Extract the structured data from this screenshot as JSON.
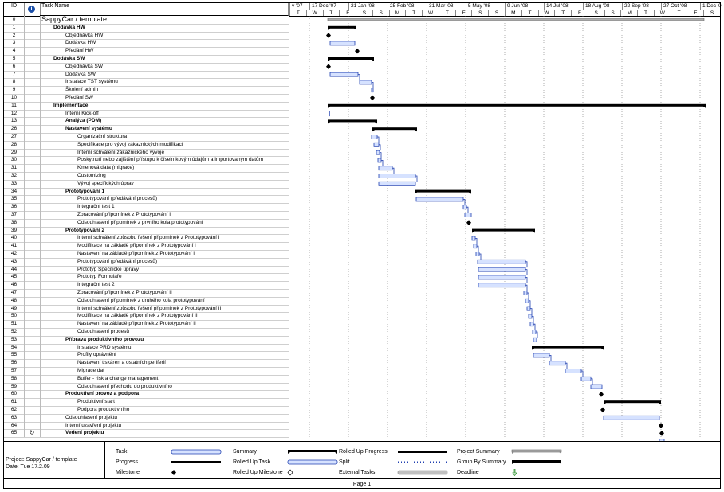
{
  "header": {
    "id_label": "ID",
    "info_glyph": "i",
    "name_label": "Task Name"
  },
  "timescale": {
    "major": [
      "v '07",
      "17 Dec '07",
      "21 Jan '08",
      "25 Feb '08",
      "31 Mar '08",
      "5 May '08",
      "9 Jun '08",
      "14 Jul '08",
      "18 Aug '08",
      "22 Sep '08",
      "27 Oct '08",
      "1 Dec '0"
    ],
    "minor": [
      "T",
      "W",
      "T",
      "F",
      "S",
      "S",
      "M",
      "T",
      "W",
      "T",
      "F",
      "S",
      "S",
      "M",
      "T",
      "W",
      "T",
      "F",
      "S",
      "S",
      "M",
      "T",
      "W",
      "T",
      "F",
      "S"
    ]
  },
  "tasks": [
    {
      "id": "0",
      "name": "SappyCar / template",
      "level": 0,
      "type": "title"
    },
    {
      "id": "1",
      "name": "Dodávka HW",
      "level": 1,
      "type": "summary"
    },
    {
      "id": "2",
      "name": "Objednávka HW",
      "level": 2
    },
    {
      "id": "3",
      "name": "Dodávka HW",
      "level": 2
    },
    {
      "id": "4",
      "name": "Předání HW",
      "level": 2
    },
    {
      "id": "5",
      "name": "Dodávka SW",
      "level": 1,
      "type": "summary"
    },
    {
      "id": "6",
      "name": "Objednávka SW",
      "level": 2
    },
    {
      "id": "7",
      "name": "Dodávka SW",
      "level": 2
    },
    {
      "id": "8",
      "name": "Instalace TST systému",
      "level": 2
    },
    {
      "id": "9",
      "name": "Školení admin",
      "level": 2
    },
    {
      "id": "10",
      "name": "Předání SW",
      "level": 2
    },
    {
      "id": "11",
      "name": "Implementace",
      "level": 1,
      "type": "summary"
    },
    {
      "id": "12",
      "name": "Interní Kick-off",
      "level": 2
    },
    {
      "id": "13",
      "name": "Analýza (PDM)",
      "level": 2,
      "type": "summary"
    },
    {
      "id": "26",
      "name": "Nastavení systému",
      "level": 2,
      "type": "summary"
    },
    {
      "id": "27",
      "name": "Organizační struktura",
      "level": 3
    },
    {
      "id": "28",
      "name": "Specifikace pro vývoj zákaznických modifikací",
      "level": 3
    },
    {
      "id": "29",
      "name": "Interní schválení zákaznického vývoje",
      "level": 3
    },
    {
      "id": "30",
      "name": "Poskytnutí nebo zajištění přístupu k číselníkovým údajům a importovaným datům",
      "level": 3
    },
    {
      "id": "31",
      "name": "Kmenová data (migrace)",
      "level": 3
    },
    {
      "id": "32",
      "name": "Customizing",
      "level": 3
    },
    {
      "id": "33",
      "name": "Vývoj specifických úprav",
      "level": 3
    },
    {
      "id": "34",
      "name": "Prototypování 1",
      "level": 2,
      "type": "summary"
    },
    {
      "id": "35",
      "name": "Prototypování (předávání procesů)",
      "level": 3
    },
    {
      "id": "36",
      "name": "Integrační test 1",
      "level": 3
    },
    {
      "id": "37",
      "name": "Zpracování připomínek z Prototypování I",
      "level": 3
    },
    {
      "id": "38",
      "name": "Odsouhlasení připomínek z prvního kola prototypování",
      "level": 3
    },
    {
      "id": "39",
      "name": "Prototypování 2",
      "level": 2,
      "type": "summary"
    },
    {
      "id": "40",
      "name": "Interní schválení způsobu řešení připomínek z Prototypování I",
      "level": 3
    },
    {
      "id": "41",
      "name": "Modifikace na základě připomínek z Prototypování I",
      "level": 3
    },
    {
      "id": "42",
      "name": "Nastavení na základě připomínek z Prototypování I",
      "level": 3
    },
    {
      "id": "43",
      "name": "Prototypování (předávání procesů)",
      "level": 3
    },
    {
      "id": "44",
      "name": "Prototyp Specifické úpravy",
      "level": 3
    },
    {
      "id": "45",
      "name": "Prototyp Formuláře",
      "level": 3
    },
    {
      "id": "46",
      "name": "Integrační test 2",
      "level": 3
    },
    {
      "id": "47",
      "name": "Zpracování připomínek z Prototypování II",
      "level": 3
    },
    {
      "id": "48",
      "name": "Odsouhlasení připomínek z druhého kola prototypování",
      "level": 3
    },
    {
      "id": "49",
      "name": "Interní schválení způsobu řešení připomínek z Prototypování II",
      "level": 3
    },
    {
      "id": "50",
      "name": "Modifikace na základě připomínek z Prototypování II",
      "level": 3
    },
    {
      "id": "51",
      "name": "Nastavení na základě připomínek z Prototypování II",
      "level": 3
    },
    {
      "id": "52",
      "name": "Odsouhlasení procesů",
      "level": 3
    },
    {
      "id": "53",
      "name": "Příprava produktivního provozu",
      "level": 2,
      "type": "summary"
    },
    {
      "id": "54",
      "name": "Instalace PRD systému",
      "level": 3
    },
    {
      "id": "55",
      "name": "Profily oprávnění",
      "level": 3
    },
    {
      "id": "56",
      "name": "Nastavení tiskáren a ostatních periferií",
      "level": 3
    },
    {
      "id": "57",
      "name": "Migrace dat",
      "level": 3
    },
    {
      "id": "58",
      "name": "Buffer - risk a change management",
      "level": 3
    },
    {
      "id": "59",
      "name": "Odsouhlasení přechodu do produktivního",
      "level": 3
    },
    {
      "id": "60",
      "name": "Produktivní provoz a podpora",
      "level": 2,
      "type": "summary"
    },
    {
      "id": "61",
      "name": "Produktivní start",
      "level": 3
    },
    {
      "id": "62",
      "name": "Podpora produktivního",
      "level": 3
    },
    {
      "id": "63",
      "name": "Odsouhlasení projektu",
      "level": 2
    },
    {
      "id": "64",
      "name": "Interní uzavření projektu",
      "level": 2
    },
    {
      "id": "65",
      "name": "Vedení projektu",
      "level": 2,
      "type": "summary",
      "indicator": "recurring-icon"
    }
  ],
  "legend": {
    "project_label": "Project: SappyCar / template",
    "date_label": "Date: Tue 17.2.09",
    "items": [
      {
        "label": "Task",
        "symbol": "task"
      },
      {
        "label": "Progress",
        "symbol": "progress"
      },
      {
        "label": "Milestone",
        "symbol": "milestone"
      },
      {
        "label": "Summary",
        "symbol": "summary"
      },
      {
        "label": "Rolled Up Task",
        "symbol": "rolled-task"
      },
      {
        "label": "Rolled Up Milestone",
        "symbol": "rolled-milestone"
      },
      {
        "label": "Rolled Up Progress",
        "symbol": "rolled-progress"
      },
      {
        "label": "Split",
        "symbol": "split"
      },
      {
        "label": "External Tasks",
        "symbol": "external"
      },
      {
        "label": "Project Summary",
        "symbol": "project-summary"
      },
      {
        "label": "Group By Summary",
        "symbol": "group-summary"
      },
      {
        "label": "Deadline",
        "symbol": "deadline"
      }
    ]
  },
  "footer": {
    "page_label": "Page 1"
  },
  "colors": {
    "task_fill": "#d6e2ff",
    "task_border": "#1f3fb0",
    "summary": "#000000",
    "arrow": "#1f3fb0",
    "external": "#c0c0c0",
    "deadline": "#3a9a3a"
  }
}
